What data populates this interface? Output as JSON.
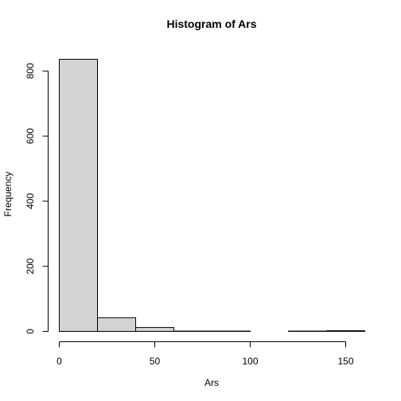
{
  "chart_data": {
    "type": "bar",
    "title": "Histogram of Ars",
    "xlabel": "Ars",
    "ylabel": "Frequency",
    "bin_edges": [
      0,
      20,
      40,
      60,
      80,
      100,
      120,
      140,
      160
    ],
    "values": [
      836,
      42,
      12,
      1,
      1,
      0,
      1,
      2
    ],
    "xlim": [
      0,
      160
    ],
    "ylim": [
      0,
      840
    ],
    "xticks": [
      0,
      50,
      100,
      150
    ],
    "yticks": [
      0,
      200,
      400,
      600,
      800
    ],
    "grid": false,
    "legend": "none",
    "bar_fill": "#d3d3d3",
    "bar_stroke": "#000000"
  }
}
